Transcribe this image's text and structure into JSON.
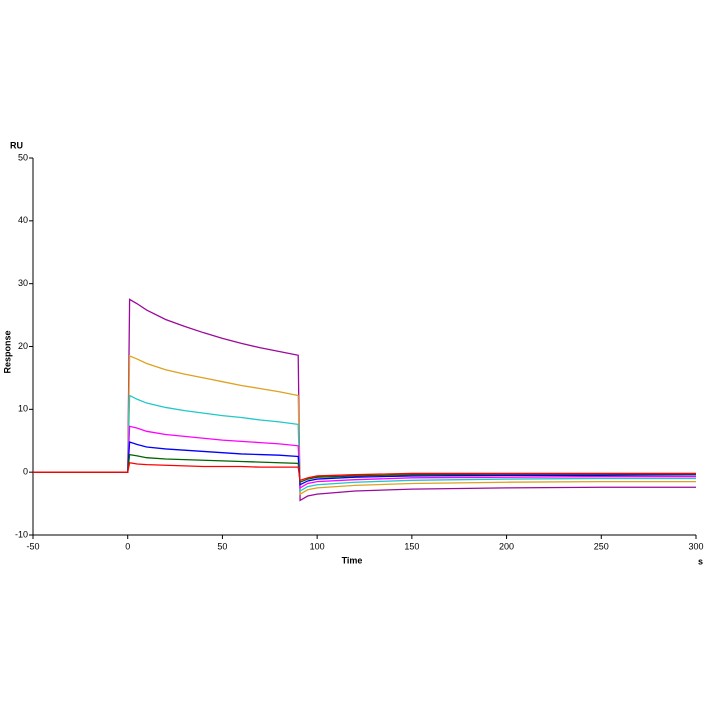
{
  "chart_data": {
    "type": "line",
    "y_label": "Response",
    "y_unit": "RU",
    "x_label": "Time",
    "x_unit": "s",
    "x": [
      -50,
      -1,
      0,
      1,
      5,
      10,
      20,
      30,
      40,
      50,
      60,
      70,
      80,
      90,
      91,
      95,
      100,
      120,
      150,
      200,
      250,
      300
    ],
    "series": [
      {
        "color": "#9b0a9b",
        "values": [
          0,
          0,
          0,
          27.5,
          26.8,
          25.8,
          24.3,
          23.2,
          22.2,
          21.3,
          20.5,
          19.8,
          19.2,
          18.6,
          -4.5,
          -3.8,
          -3.5,
          -3.0,
          -2.7,
          -2.5,
          -2.4,
          -2.4
        ]
      },
      {
        "color": "#e0a020",
        "values": [
          0,
          0,
          0,
          18.5,
          18.0,
          17.3,
          16.3,
          15.6,
          15.0,
          14.4,
          13.8,
          13.3,
          12.8,
          12.2,
          -3.5,
          -2.8,
          -2.5,
          -2.1,
          -1.8,
          -1.6,
          -1.5,
          -1.5
        ]
      },
      {
        "color": "#20c8c8",
        "values": [
          0,
          0,
          0,
          12.2,
          11.6,
          11.0,
          10.3,
          9.8,
          9.4,
          9.0,
          8.7,
          8.3,
          8.0,
          7.6,
          -3.0,
          -2.3,
          -2.0,
          -1.6,
          -1.3,
          -1.1,
          -1.0,
          -1.0
        ]
      },
      {
        "color": "#ff00ff",
        "values": [
          0,
          0,
          0,
          7.3,
          7.0,
          6.5,
          6.0,
          5.7,
          5.4,
          5.1,
          4.9,
          4.7,
          4.5,
          4.2,
          -2.5,
          -1.8,
          -1.5,
          -1.2,
          -0.9,
          -0.8,
          -0.7,
          -0.7
        ]
      },
      {
        "color": "#0000ff",
        "values": [
          0,
          0,
          0,
          4.8,
          4.4,
          4.0,
          3.7,
          3.5,
          3.3,
          3.1,
          2.9,
          2.8,
          2.7,
          2.5,
          -2.0,
          -1.4,
          -1.1,
          -0.8,
          -0.6,
          -0.5,
          -0.5,
          -0.4
        ]
      },
      {
        "color": "#006400",
        "values": [
          0,
          0,
          0,
          2.8,
          2.6,
          2.3,
          2.1,
          2.0,
          1.9,
          1.8,
          1.7,
          1.6,
          1.5,
          1.4,
          -1.6,
          -1.1,
          -0.8,
          -0.6,
          -0.4,
          -0.3,
          -0.3,
          -0.3
        ]
      },
      {
        "color": "#ff0000",
        "values": [
          0,
          0,
          0,
          1.5,
          1.3,
          1.2,
          1.1,
          1.0,
          0.9,
          0.9,
          0.9,
          0.8,
          0.8,
          0.8,
          -1.3,
          -0.9,
          -0.6,
          -0.4,
          -0.2,
          -0.2,
          -0.2,
          -0.2
        ]
      }
    ],
    "xlim": [
      -50,
      300
    ],
    "xticks": [
      -50,
      0,
      50,
      100,
      150,
      200,
      250,
      300
    ],
    "ylim": [
      -10,
      50
    ],
    "yticks": [
      -10,
      0,
      10,
      20,
      30,
      40,
      50
    ]
  }
}
